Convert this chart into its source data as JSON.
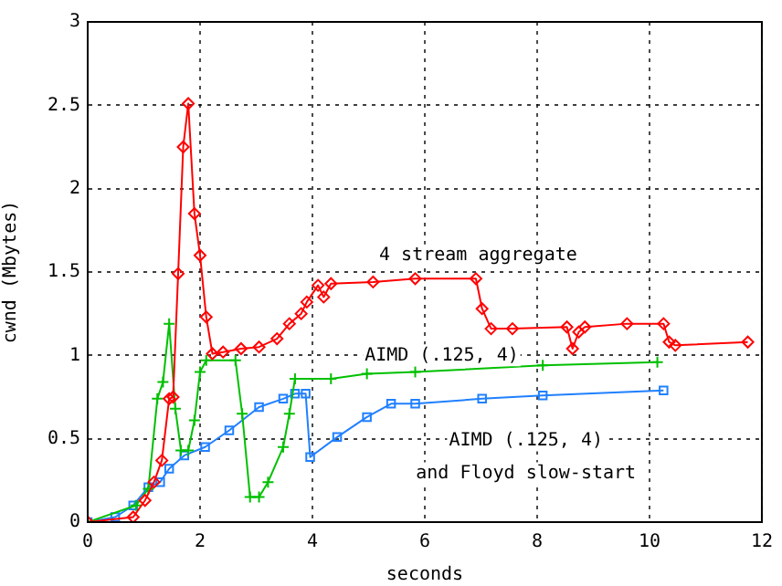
{
  "chart_data": {
    "type": "line",
    "xlabel": "seconds",
    "ylabel": "cwnd (Mbytes)",
    "xlim": [
      0,
      12
    ],
    "xticks": [
      0,
      2,
      4,
      6,
      8,
      10,
      12
    ],
    "ylim": [
      0,
      3
    ],
    "yticks": [
      0,
      0.5,
      1,
      1.5,
      2,
      2.5,
      3
    ],
    "grid": true,
    "legend": false,
    "line_style": "solid",
    "series": [
      {
        "name": "4 stream aggregate",
        "color": "#ff0000",
        "marker": "diamond",
        "x": [
          0,
          0.81,
          1.02,
          1.18,
          1.32,
          1.45,
          1.52,
          1.61,
          1.7,
          1.79,
          1.9,
          2.0,
          2.11,
          2.22,
          2.41,
          2.73,
          3.05,
          3.37,
          3.59,
          3.8,
          3.9,
          4.1,
          4.2,
          4.33,
          5.08,
          5.83,
          6.91,
          7.02,
          7.18,
          7.56,
          8.53,
          8.63,
          8.74,
          8.85,
          9.6,
          10.25,
          10.35,
          10.46,
          11.75
        ],
        "values": [
          0,
          0.03,
          0.13,
          0.24,
          0.37,
          0.74,
          0.75,
          1.49,
          2.25,
          2.51,
          1.85,
          1.6,
          1.23,
          1.01,
          1.02,
          1.04,
          1.05,
          1.1,
          1.19,
          1.25,
          1.32,
          1.42,
          1.35,
          1.43,
          1.44,
          1.46,
          1.46,
          1.28,
          1.16,
          1.16,
          1.17,
          1.04,
          1.14,
          1.17,
          1.19,
          1.19,
          1.08,
          1.06,
          1.08
        ]
      },
      {
        "name": "AIMD (.125, 4)",
        "color": "#00c000",
        "marker": "cross",
        "x": [
          0,
          0.86,
          1.08,
          1.24,
          1.34,
          1.45,
          1.56,
          1.66,
          1.79,
          1.9,
          2.0,
          2.11,
          2.63,
          2.75,
          2.89,
          3.05,
          3.21,
          3.48,
          3.59,
          3.69,
          4.33,
          4.97,
          5.83,
          8.1,
          10.14
        ],
        "values": [
          0,
          0.1,
          0.2,
          0.74,
          0.84,
          1.19,
          0.68,
          0.43,
          0.43,
          0.61,
          0.9,
          0.97,
          0.97,
          0.65,
          0.15,
          0.15,
          0.24,
          0.45,
          0.65,
          0.86,
          0.86,
          0.89,
          0.9,
          0.94,
          0.96
        ]
      },
      {
        "name": "AIMD (.125, 4)\nand Floyd slow-start",
        "color": "#2080ff",
        "marker": "square",
        "x": [
          0,
          0.49,
          0.81,
          1.08,
          1.29,
          1.45,
          1.72,
          2.09,
          2.52,
          3.05,
          3.48,
          3.69,
          3.88,
          3.96,
          4.44,
          4.97,
          5.4,
          5.83,
          7.02,
          8.1,
          10.25
        ],
        "values": [
          0,
          0.03,
          0.1,
          0.21,
          0.24,
          0.32,
          0.4,
          0.45,
          0.55,
          0.69,
          0.74,
          0.77,
          0.77,
          0.39,
          0.51,
          0.63,
          0.71,
          0.71,
          0.74,
          0.76,
          0.79
        ]
      }
    ]
  }
}
